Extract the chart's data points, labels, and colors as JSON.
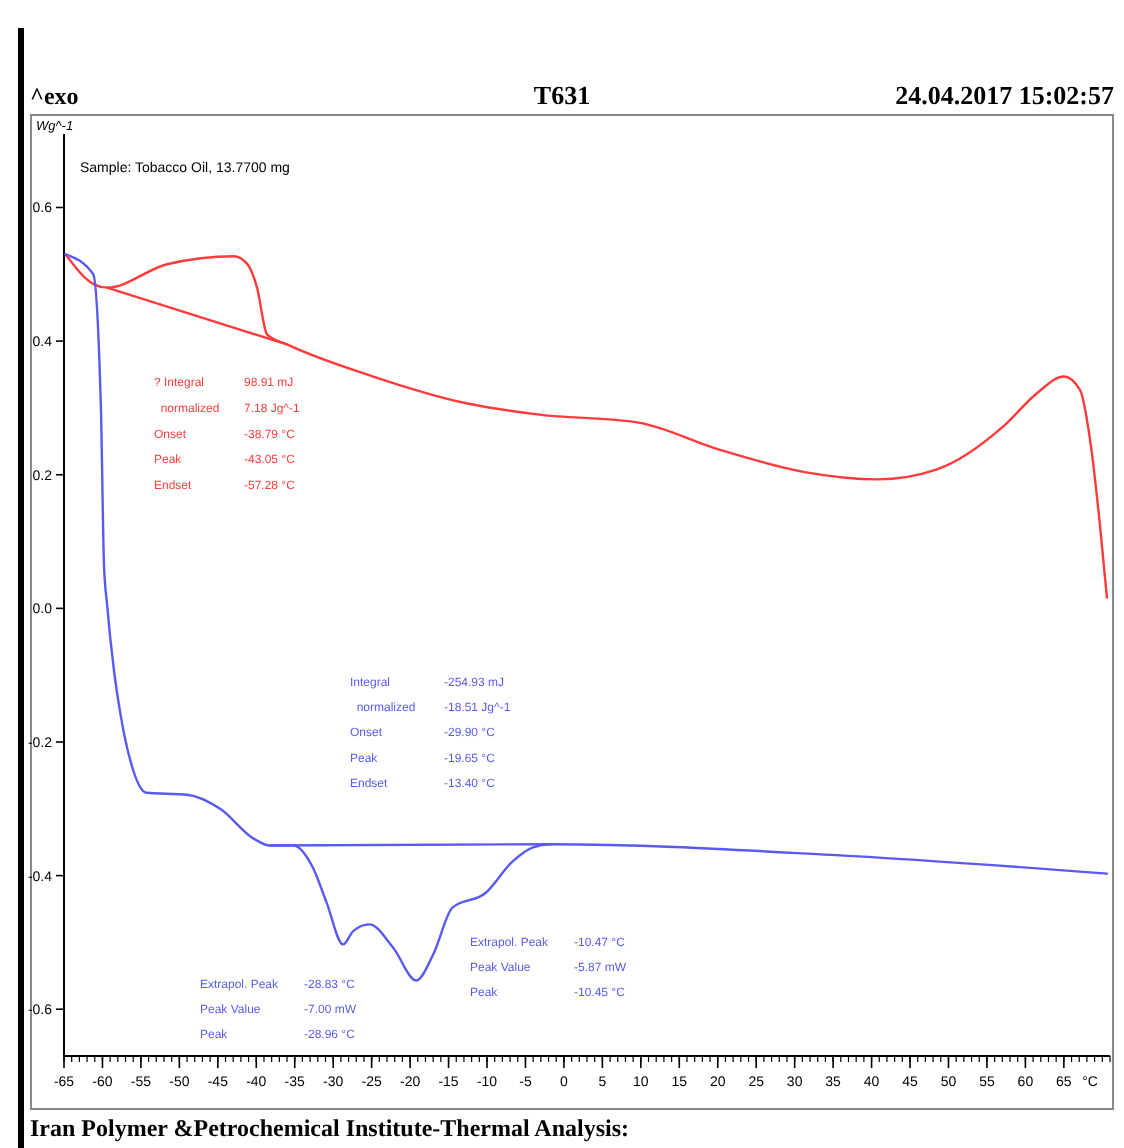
{
  "chart_data": {
    "type": "line",
    "title": "T631",
    "subtitle": "24.04.2017 15:02:57",
    "xlabel": "°C",
    "ylabel": "Wg^-1",
    "grid": false,
    "marker": "none",
    "line_style": "solid",
    "xlim": [
      -65,
      71
    ],
    "ylim": [
      -0.67,
      0.71
    ],
    "xticks": [
      -65,
      -60,
      -55,
      -50,
      -45,
      -40,
      -35,
      -30,
      -25,
      -20,
      -15,
      -10,
      -5,
      0,
      5,
      10,
      15,
      20,
      25,
      30,
      35,
      40,
      45,
      50,
      55,
      60,
      65
    ],
    "yticks": [
      -0.6,
      -0.4,
      -0.2,
      {
        "value": 0,
        "label": "0.0"
      },
      0.2,
      0.4,
      0.6
    ],
    "series": [
      {
        "color": "#ff3b3b",
        "x": [
          -64.8,
          -61.1,
          -59.4,
          -51.6,
          -42.9,
          -41.2,
          -39.9,
          -38.6,
          -36.0,
          -24.8,
          -12.7,
          -3.2,
          9.7,
          20.1,
          31.3,
          40.8,
          48.5,
          57.2,
          61.5,
          65.0,
          67.1,
          68.4,
          69.7,
          70.6
        ],
        "values": [
          0.53,
          0.485,
          0.48,
          0.515,
          0.527,
          0.516,
          0.48,
          0.41,
          0.395,
          0.347,
          0.307,
          0.29,
          0.278,
          0.238,
          0.204,
          0.193,
          0.208,
          0.273,
          0.322,
          0.347,
          0.327,
          0.253,
          0.124,
          0.016
        ]
      },
      {
        "color": "#ff3b3b",
        "x": [
          -59.4,
          -36.0
        ],
        "values": [
          0.48,
          0.395
        ]
      },
      {
        "color": "#5a5af0",
        "x": [
          -64.8,
          -61.2,
          -60.2,
          -59.8,
          -59.4,
          -58.5,
          -57.6,
          -56.3,
          -54.3,
          -49.0,
          -44.7,
          -40.3,
          -38.2,
          -35.2,
          -32.6,
          -30.9,
          -28.7,
          -27.4,
          -25.3,
          -22.2,
          -19.2,
          -17.0,
          -14.5,
          -10.2,
          -6.7,
          -4.1,
          -1.7,
          34.7,
          70.6
        ],
        "values": [
          0.53,
          0.5,
          0.3,
          0.065,
          0.006,
          -0.093,
          -0.162,
          -0.231,
          -0.276,
          -0.279,
          -0.3,
          -0.345,
          -0.355,
          -0.355,
          -0.389,
          -0.439,
          -0.503,
          -0.483,
          -0.473,
          -0.508,
          -0.557,
          -0.518,
          -0.448,
          -0.426,
          -0.379,
          -0.358,
          -0.353,
          -0.369,
          -0.397
        ]
      },
      {
        "color": "#5a5af0",
        "x": [
          -38.2,
          -1.7
        ],
        "values": [
          -0.355,
          -0.353
        ]
      }
    ],
    "annotations": [
      "^exo",
      "Iran Polymer &Petrochemical Institute-Thermal Analysis:",
      "Sample: Tobacco Oil, 13.7700 mg",
      "? Integral\t98.91 mJ\n  normalized\t7.18 Jg^-1\nOnset\t-38.79 °C\nPeak\t-43.05 °C\nEndset\t-57.28 °C",
      "Integral\t-254.93 mJ\n  normalized\t-18.51 Jg^-1\nOnset\t-29.90 °C\nPeak\t-19.65 °C\nEndset\t-13.40 °C",
      "Extrapol. Peak\t-28.83 °C\nPeak Value\t-7.00 mW\nPeak\t-28.96 °C",
      "Extrapol. Peak\t-10.47 °C\nPeak Value\t-5.87 mW\nPeak\t-10.45 °C"
    ]
  }
}
